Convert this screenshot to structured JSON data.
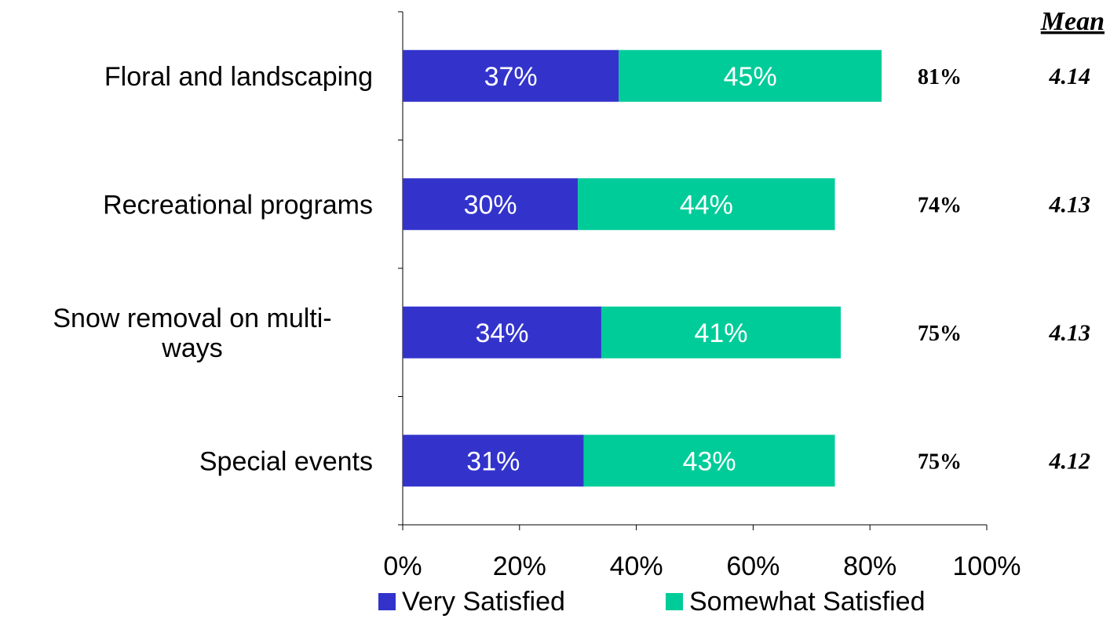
{
  "chart_data": {
    "type": "bar",
    "orientation": "horizontal",
    "stacked": true,
    "categories": [
      "Floral and landscaping",
      "Recreational programs",
      "Snow removal on multi-ways",
      "Special events"
    ],
    "category_lines": [
      [
        "Floral and landscaping"
      ],
      [
        "Recreational programs"
      ],
      [
        "Snow removal on multi-",
        "ways"
      ],
      [
        "Special events"
      ]
    ],
    "series": [
      {
        "name": "Very Satisfied",
        "color": "#3333CC",
        "values": [
          37,
          30,
          34,
          31
        ],
        "labels": [
          "37%",
          "30%",
          "34%",
          "31%"
        ]
      },
      {
        "name": "Somewhat Satisfied",
        "color": "#00CC99",
        "values": [
          45,
          44,
          41,
          43
        ],
        "labels": [
          "45%",
          "44%",
          "41%",
          "43%"
        ]
      }
    ],
    "totals": [
      "81%",
      "74%",
      "75%",
      "75%"
    ],
    "mean_header": "Mean",
    "means": [
      "4.14",
      "4.13",
      "4.13",
      "4.12"
    ],
    "x_ticks": [
      "0%",
      "20%",
      "40%",
      "60%",
      "80%",
      "100%"
    ],
    "xlim": [
      0,
      100
    ],
    "grid": false,
    "legend_position": "bottom"
  }
}
